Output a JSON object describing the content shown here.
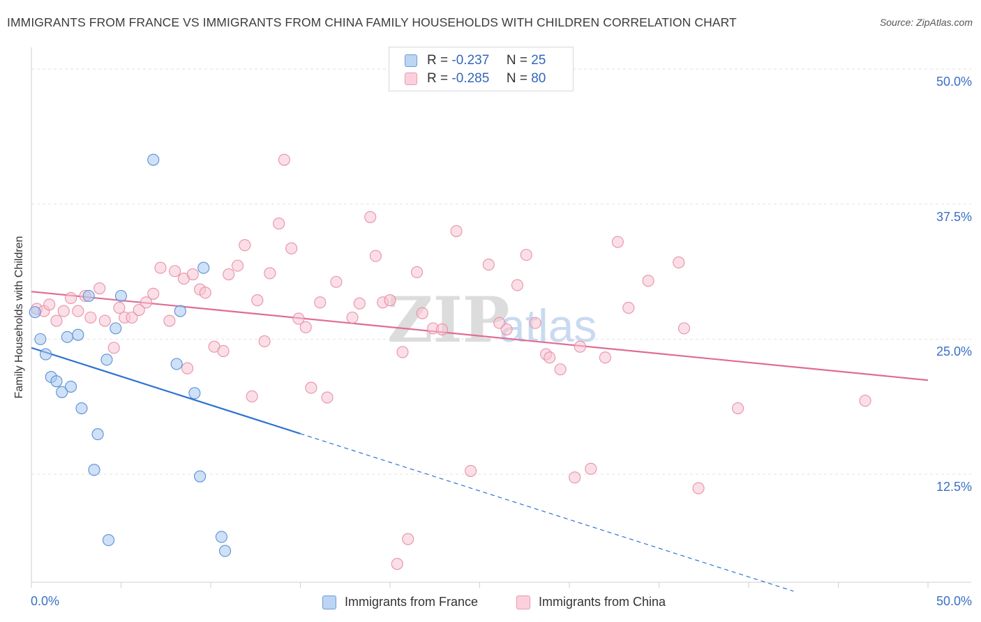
{
  "chart_data": {
    "type": "scatter",
    "title": "IMMIGRANTS FROM FRANCE VS IMMIGRANTS FROM CHINA FAMILY HOUSEHOLDS WITH CHILDREN CORRELATION CHART",
    "source": "Source: ZipAtlas.com",
    "ylabel": "Family Households with Children",
    "xlabel": "",
    "xlim": [
      0,
      50
    ],
    "ylim": [
      2.5,
      52
    ],
    "x_tick_labels": {
      "min": "0.0%",
      "max": "50.0%"
    },
    "y_ticks": [
      {
        "value": 12.5,
        "label": "12.5%"
      },
      {
        "value": 25.0,
        "label": "25.0%"
      },
      {
        "value": 37.5,
        "label": "37.5%"
      },
      {
        "value": 50.0,
        "label": "50.0%"
      }
    ],
    "watermark": {
      "zip": "ZIP",
      "atlas": "atlas"
    },
    "series": [
      {
        "name": "Immigrants from France",
        "r_label": "R =",
        "r_value": "-0.237",
        "n_label": "N =",
        "n_value": "25",
        "fill": "#a8c8ef",
        "stroke": "#5a8fd6",
        "line_color": "#2d72d2",
        "trend": {
          "x_start": 0,
          "y_start": 24.2,
          "x_solid_end": 15,
          "x_dash_end": 42.5,
          "slope": -0.53
        },
        "points": [
          [
            0.2,
            27.5
          ],
          [
            0.5,
            25.0
          ],
          [
            0.8,
            23.6
          ],
          [
            1.1,
            21.5
          ],
          [
            1.4,
            21.1
          ],
          [
            1.7,
            20.1
          ],
          [
            2.0,
            25.2
          ],
          [
            2.2,
            20.6
          ],
          [
            2.6,
            25.4
          ],
          [
            2.8,
            18.6
          ],
          [
            3.2,
            29.0
          ],
          [
            3.7,
            16.2
          ],
          [
            3.5,
            12.9
          ],
          [
            4.2,
            23.1
          ],
          [
            4.3,
            6.4
          ],
          [
            4.7,
            26.0
          ],
          [
            5.0,
            29.0
          ],
          [
            6.8,
            41.6
          ],
          [
            8.1,
            22.7
          ],
          [
            8.3,
            27.6
          ],
          [
            9.1,
            20.0
          ],
          [
            9.6,
            31.6
          ],
          [
            9.4,
            12.3
          ],
          [
            10.6,
            6.7
          ],
          [
            10.8,
            5.4
          ]
        ]
      },
      {
        "name": "Immigrants from China",
        "r_label": "R =",
        "r_value": "-0.285",
        "n_label": "N =",
        "n_value": "80",
        "fill": "#f8c4d2",
        "stroke": "#e890aa",
        "line_color": "#e06c94",
        "trend": {
          "x_start": 0,
          "y_start": 29.4,
          "x_end": 50,
          "y_end": 21.2
        },
        "points": [
          [
            0.3,
            27.8
          ],
          [
            0.7,
            27.6
          ],
          [
            1.0,
            28.2
          ],
          [
            1.4,
            26.7
          ],
          [
            1.8,
            27.6
          ],
          [
            2.2,
            28.8
          ],
          [
            2.6,
            27.6
          ],
          [
            3.0,
            29.0
          ],
          [
            3.3,
            27.0
          ],
          [
            3.8,
            29.7
          ],
          [
            4.1,
            26.7
          ],
          [
            4.6,
            24.2
          ],
          [
            4.9,
            27.9
          ],
          [
            5.2,
            27.0
          ],
          [
            5.6,
            27.0
          ],
          [
            6.0,
            27.7
          ],
          [
            6.4,
            28.4
          ],
          [
            6.8,
            29.2
          ],
          [
            7.2,
            31.6
          ],
          [
            7.7,
            26.7
          ],
          [
            8.0,
            31.3
          ],
          [
            8.5,
            30.6
          ],
          [
            8.7,
            22.3
          ],
          [
            9.0,
            31.0
          ],
          [
            9.4,
            29.6
          ],
          [
            9.7,
            29.3
          ],
          [
            10.2,
            24.3
          ],
          [
            10.7,
            23.9
          ],
          [
            11.0,
            31.0
          ],
          [
            11.5,
            31.8
          ],
          [
            11.9,
            33.7
          ],
          [
            12.3,
            19.7
          ],
          [
            12.6,
            28.6
          ],
          [
            13.0,
            24.8
          ],
          [
            13.3,
            31.1
          ],
          [
            13.8,
            35.7
          ],
          [
            14.1,
            41.6
          ],
          [
            14.5,
            33.4
          ],
          [
            14.9,
            26.9
          ],
          [
            15.3,
            26.1
          ],
          [
            15.6,
            20.5
          ],
          [
            16.1,
            28.4
          ],
          [
            16.5,
            19.6
          ],
          [
            17.0,
            30.3
          ],
          [
            17.9,
            27.0
          ],
          [
            18.3,
            28.3
          ],
          [
            18.9,
            36.3
          ],
          [
            19.2,
            32.7
          ],
          [
            19.6,
            28.4
          ],
          [
            20.0,
            28.6
          ],
          [
            20.7,
            23.8
          ],
          [
            21.5,
            31.2
          ],
          [
            21.8,
            27.4
          ],
          [
            22.4,
            26.0
          ],
          [
            22.9,
            25.9
          ],
          [
            23.7,
            35.0
          ],
          [
            24.5,
            12.8
          ],
          [
            25.5,
            31.9
          ],
          [
            26.1,
            26.5
          ],
          [
            26.5,
            25.9
          ],
          [
            27.1,
            30.0
          ],
          [
            27.6,
            32.8
          ],
          [
            28.1,
            26.5
          ],
          [
            28.7,
            23.6
          ],
          [
            28.9,
            23.3
          ],
          [
            29.5,
            22.2
          ],
          [
            30.3,
            12.2
          ],
          [
            30.6,
            24.3
          ],
          [
            31.2,
            13.0
          ],
          [
            32.0,
            23.3
          ],
          [
            32.7,
            34.0
          ],
          [
            33.3,
            27.9
          ],
          [
            34.4,
            30.4
          ],
          [
            36.1,
            32.1
          ],
          [
            36.4,
            26.0
          ],
          [
            39.4,
            18.6
          ],
          [
            46.5,
            19.3
          ],
          [
            37.2,
            11.2
          ],
          [
            21.0,
            6.5
          ],
          [
            20.4,
            4.2
          ]
        ]
      }
    ]
  }
}
